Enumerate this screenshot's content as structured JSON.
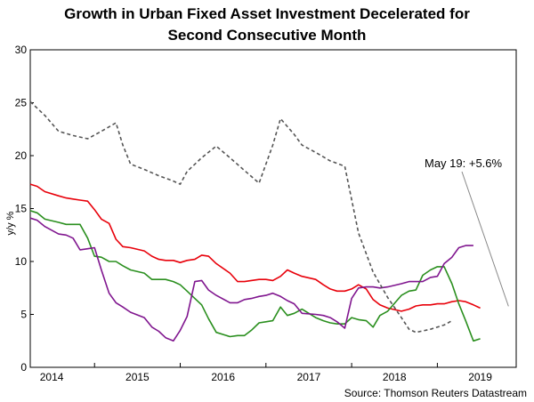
{
  "chart_data": {
    "type": "line",
    "title_line1": "Growth in Urban Fixed Asset Investment Decelerated for",
    "title_line2": "Second Consecutive Month",
    "ylabel": "y/y %",
    "xlabel": "",
    "ylim": [
      0,
      30
    ],
    "yticks": [
      0,
      5,
      10,
      15,
      20,
      25,
      30
    ],
    "xlim": [
      2013.75,
      2019.42
    ],
    "year_labels": [
      {
        "label": "2014",
        "x": 2014.0
      },
      {
        "label": "2015",
        "x": 2015.0
      },
      {
        "label": "2016",
        "x": 2016.0
      },
      {
        "label": "2017",
        "x": 2017.0
      },
      {
        "label": "2018",
        "x": 2018.0
      },
      {
        "label": "2019",
        "x": 2019.0
      }
    ],
    "year_ticks": [
      2014.5,
      2015.5,
      2016.5,
      2017.5,
      2018.5
    ],
    "grid": false,
    "legend": "none",
    "annotation": {
      "text": "May 19: +5.6%",
      "x": 2019.33,
      "y": 5.6
    },
    "source": "Source: Thomson Reuters Datastream",
    "series": [
      {
        "color": "#e8000a",
        "style": "solid",
        "points": [
          [
            2013.75,
            17.3
          ],
          [
            2013.83,
            17.1
          ],
          [
            2013.92,
            16.6
          ],
          [
            2014.08,
            16.2
          ],
          [
            2014.17,
            16.0
          ],
          [
            2014.25,
            15.9
          ],
          [
            2014.33,
            15.8
          ],
          [
            2014.42,
            15.7
          ],
          [
            2014.5,
            14.9
          ],
          [
            2014.58,
            14.0
          ],
          [
            2014.67,
            13.6
          ],
          [
            2014.75,
            12.1
          ],
          [
            2014.83,
            11.4
          ],
          [
            2014.92,
            11.3
          ],
          [
            2015.08,
            11.0
          ],
          [
            2015.17,
            10.5
          ],
          [
            2015.25,
            10.2
          ],
          [
            2015.33,
            10.1
          ],
          [
            2015.42,
            10.1
          ],
          [
            2015.5,
            9.9
          ],
          [
            2015.58,
            10.1
          ],
          [
            2015.67,
            10.2
          ],
          [
            2015.75,
            10.6
          ],
          [
            2015.83,
            10.5
          ],
          [
            2015.92,
            9.8
          ],
          [
            2016.08,
            8.9
          ],
          [
            2016.17,
            8.1
          ],
          [
            2016.25,
            8.1
          ],
          [
            2016.33,
            8.2
          ],
          [
            2016.42,
            8.3
          ],
          [
            2016.5,
            8.3
          ],
          [
            2016.58,
            8.2
          ],
          [
            2016.67,
            8.6
          ],
          [
            2016.75,
            9.2
          ],
          [
            2016.83,
            8.9
          ],
          [
            2016.92,
            8.6
          ],
          [
            2017.08,
            8.3
          ],
          [
            2017.17,
            7.8
          ],
          [
            2017.25,
            7.4
          ],
          [
            2017.33,
            7.2
          ],
          [
            2017.42,
            7.2
          ],
          [
            2017.5,
            7.4
          ],
          [
            2017.58,
            7.8
          ],
          [
            2017.67,
            7.4
          ],
          [
            2017.75,
            6.4
          ],
          [
            2017.83,
            5.9
          ],
          [
            2017.92,
            5.6
          ],
          [
            2018.08,
            5.3
          ],
          [
            2018.17,
            5.5
          ],
          [
            2018.25,
            5.8
          ],
          [
            2018.33,
            5.9
          ],
          [
            2018.42,
            5.9
          ],
          [
            2018.5,
            6.0
          ],
          [
            2018.58,
            6.0
          ],
          [
            2018.67,
            6.2
          ],
          [
            2018.75,
            6.3
          ],
          [
            2018.83,
            6.2
          ],
          [
            2018.92,
            5.9
          ],
          [
            2019.0,
            5.6
          ]
        ]
      },
      {
        "color": "#2a8f1e",
        "style": "solid",
        "points": [
          [
            2013.75,
            14.8
          ],
          [
            2013.83,
            14.6
          ],
          [
            2013.92,
            14.0
          ],
          [
            2014.08,
            13.7
          ],
          [
            2014.17,
            13.5
          ],
          [
            2014.25,
            13.5
          ],
          [
            2014.33,
            13.5
          ],
          [
            2014.42,
            12.2
          ],
          [
            2014.5,
            10.5
          ],
          [
            2014.58,
            10.4
          ],
          [
            2014.67,
            10.0
          ],
          [
            2014.75,
            10.0
          ],
          [
            2014.83,
            9.6
          ],
          [
            2014.92,
            9.2
          ],
          [
            2015.08,
            8.9
          ],
          [
            2015.17,
            8.3
          ],
          [
            2015.25,
            8.3
          ],
          [
            2015.33,
            8.3
          ],
          [
            2015.42,
            8.1
          ],
          [
            2015.5,
            7.8
          ],
          [
            2015.58,
            7.2
          ],
          [
            2015.67,
            6.5
          ],
          [
            2015.75,
            5.9
          ],
          [
            2015.83,
            4.6
          ],
          [
            2015.92,
            3.3
          ],
          [
            2016.08,
            2.9
          ],
          [
            2016.17,
            3.0
          ],
          [
            2016.25,
            3.0
          ],
          [
            2016.33,
            3.5
          ],
          [
            2016.42,
            4.2
          ],
          [
            2016.5,
            4.3
          ],
          [
            2016.58,
            4.4
          ],
          [
            2016.67,
            5.7
          ],
          [
            2016.75,
            4.9
          ],
          [
            2016.83,
            5.1
          ],
          [
            2016.92,
            5.5
          ],
          [
            2017.08,
            4.7
          ],
          [
            2017.17,
            4.4
          ],
          [
            2017.25,
            4.2
          ],
          [
            2017.33,
            4.1
          ],
          [
            2017.42,
            4.1
          ],
          [
            2017.5,
            4.7
          ],
          [
            2017.58,
            4.5
          ],
          [
            2017.67,
            4.4
          ],
          [
            2017.75,
            3.8
          ],
          [
            2017.83,
            4.9
          ],
          [
            2017.92,
            5.3
          ],
          [
            2018.08,
            6.8
          ],
          [
            2018.17,
            7.2
          ],
          [
            2018.25,
            7.3
          ],
          [
            2018.33,
            8.7
          ],
          [
            2018.42,
            9.2
          ],
          [
            2018.5,
            9.5
          ],
          [
            2018.58,
            9.5
          ],
          [
            2018.67,
            7.9
          ],
          [
            2018.75,
            6.0
          ],
          [
            2018.83,
            4.4
          ],
          [
            2018.92,
            2.5
          ],
          [
            2019.0,
            2.7
          ]
        ]
      },
      {
        "color": "#80168f",
        "style": "solid",
        "points": [
          [
            2013.75,
            14.1
          ],
          [
            2013.83,
            13.9
          ],
          [
            2013.92,
            13.3
          ],
          [
            2014.08,
            12.6
          ],
          [
            2014.17,
            12.5
          ],
          [
            2014.25,
            12.2
          ],
          [
            2014.33,
            11.1
          ],
          [
            2014.42,
            11.2
          ],
          [
            2014.5,
            11.3
          ],
          [
            2014.58,
            9.2
          ],
          [
            2014.67,
            7.0
          ],
          [
            2014.75,
            6.1
          ],
          [
            2014.83,
            5.7
          ],
          [
            2014.92,
            5.2
          ],
          [
            2015.08,
            4.7
          ],
          [
            2015.17,
            3.8
          ],
          [
            2015.25,
            3.4
          ],
          [
            2015.33,
            2.8
          ],
          [
            2015.42,
            2.5
          ],
          [
            2015.5,
            3.5
          ],
          [
            2015.58,
            4.8
          ],
          [
            2015.67,
            8.1
          ],
          [
            2015.75,
            8.2
          ],
          [
            2015.83,
            7.3
          ],
          [
            2015.92,
            6.8
          ],
          [
            2016.08,
            6.1
          ],
          [
            2016.17,
            6.1
          ],
          [
            2016.25,
            6.4
          ],
          [
            2016.33,
            6.5
          ],
          [
            2016.42,
            6.7
          ],
          [
            2016.5,
            6.8
          ],
          [
            2016.58,
            7.0
          ],
          [
            2016.67,
            6.7
          ],
          [
            2016.75,
            6.3
          ],
          [
            2016.83,
            6.0
          ],
          [
            2016.92,
            5.1
          ],
          [
            2017.08,
            5.0
          ],
          [
            2017.17,
            4.9
          ],
          [
            2017.25,
            4.7
          ],
          [
            2017.33,
            4.3
          ],
          [
            2017.42,
            3.7
          ],
          [
            2017.5,
            6.5
          ],
          [
            2017.58,
            7.5
          ],
          [
            2017.67,
            7.6
          ],
          [
            2017.75,
            7.6
          ],
          [
            2017.83,
            7.5
          ],
          [
            2017.92,
            7.6
          ],
          [
            2018.08,
            7.9
          ],
          [
            2018.17,
            8.1
          ],
          [
            2018.25,
            8.1
          ],
          [
            2018.33,
            8.1
          ],
          [
            2018.42,
            8.5
          ],
          [
            2018.5,
            8.6
          ],
          [
            2018.58,
            9.8
          ],
          [
            2018.67,
            10.4
          ],
          [
            2018.75,
            11.3
          ],
          [
            2018.83,
            11.5
          ],
          [
            2018.92,
            11.5
          ]
        ]
      },
      {
        "color": "#555555",
        "style": "dashed",
        "points": [
          [
            2013.75,
            25.1
          ],
          [
            2013.92,
            23.8
          ],
          [
            2014.08,
            22.3
          ],
          [
            2014.25,
            21.9
          ],
          [
            2014.42,
            21.6
          ],
          [
            2014.58,
            22.3
          ],
          [
            2014.75,
            23.1
          ],
          [
            2014.83,
            21.0
          ],
          [
            2014.92,
            19.2
          ],
          [
            2015.08,
            18.7
          ],
          [
            2015.25,
            18.1
          ],
          [
            2015.42,
            17.6
          ],
          [
            2015.5,
            17.3
          ],
          [
            2015.58,
            18.5
          ],
          [
            2015.75,
            19.8
          ],
          [
            2015.92,
            20.9
          ],
          [
            2016.08,
            19.8
          ],
          [
            2016.25,
            18.6
          ],
          [
            2016.42,
            17.4
          ],
          [
            2016.58,
            21.0
          ],
          [
            2016.67,
            23.5
          ],
          [
            2016.83,
            22.0
          ],
          [
            2016.92,
            21.0
          ],
          [
            2017.08,
            20.3
          ],
          [
            2017.25,
            19.5
          ],
          [
            2017.42,
            19.0
          ],
          [
            2017.58,
            12.7
          ],
          [
            2017.75,
            9.0
          ],
          [
            2017.92,
            6.6
          ],
          [
            2018.08,
            4.7
          ],
          [
            2018.17,
            3.6
          ],
          [
            2018.25,
            3.3
          ],
          [
            2018.42,
            3.6
          ],
          [
            2018.58,
            4.0
          ],
          [
            2018.67,
            4.4
          ]
        ]
      }
    ]
  }
}
